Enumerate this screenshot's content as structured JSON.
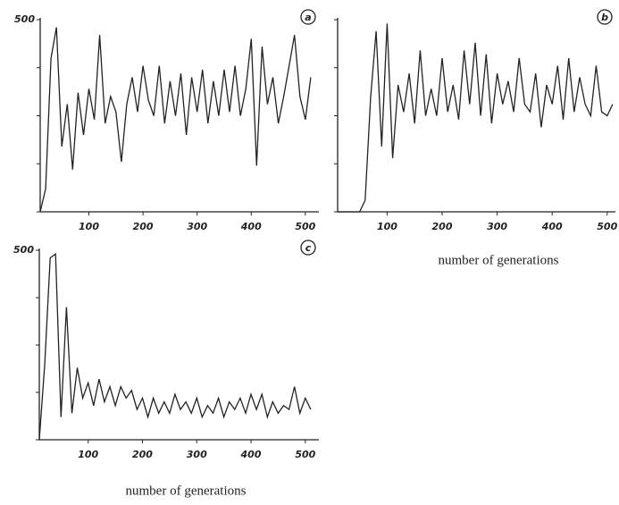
{
  "chart_data": [
    {
      "type": "line",
      "panel_label": "a",
      "x": [
        10,
        20,
        30,
        40,
        50,
        60,
        70,
        80,
        90,
        100,
        110,
        120,
        130,
        140,
        150,
        160,
        170,
        180,
        190,
        200,
        210,
        220,
        230,
        240,
        250,
        260,
        270,
        280,
        290,
        300,
        310,
        320,
        330,
        340,
        350,
        360,
        370,
        380,
        390,
        400,
        410,
        420,
        430,
        440,
        450,
        460,
        470,
        480,
        490,
        500,
        510
      ],
      "values": [
        0,
        60,
        400,
        480,
        170,
        280,
        110,
        310,
        200,
        320,
        240,
        460,
        230,
        300,
        260,
        130,
        280,
        350,
        260,
        380,
        290,
        250,
        380,
        230,
        340,
        250,
        360,
        200,
        350,
        260,
        370,
        230,
        340,
        250,
        370,
        260,
        380,
        250,
        320,
        450,
        120,
        430,
        280,
        350,
        230,
        300,
        380,
        460,
        300,
        240,
        350
      ],
      "color": "#222222",
      "xlim": [
        10,
        525
      ],
      "ylim": [
        0,
        500
      ],
      "xticks": [
        100,
        200,
        300,
        400,
        500
      ],
      "yticks": [
        500
      ],
      "y_minor_ticks": [
        0,
        125,
        250,
        375
      ]
    },
    {
      "type": "line",
      "panel_label": "b",
      "xlabel": "number of  generations",
      "x": [
        10,
        20,
        30,
        40,
        50,
        60,
        70,
        80,
        90,
        100,
        110,
        120,
        130,
        140,
        150,
        160,
        170,
        180,
        190,
        200,
        210,
        220,
        230,
        240,
        250,
        260,
        270,
        280,
        290,
        300,
        310,
        320,
        330,
        340,
        350,
        360,
        370,
        380,
        390,
        400,
        410,
        420,
        430,
        440,
        450,
        460,
        470,
        480,
        490,
        500,
        510
      ],
      "values": [
        0,
        0,
        0,
        0,
        0,
        30,
        300,
        470,
        170,
        490,
        140,
        330,
        260,
        360,
        230,
        420,
        250,
        320,
        250,
        400,
        260,
        330,
        240,
        420,
        280,
        440,
        250,
        410,
        230,
        360,
        280,
        340,
        260,
        400,
        280,
        260,
        360,
        220,
        330,
        280,
        380,
        240,
        400,
        260,
        350,
        280,
        250,
        380,
        260,
        250,
        280
      ],
      "color": "#222222",
      "xlim": [
        10,
        515
      ],
      "ylim": [
        0,
        500
      ],
      "xticks": [
        100,
        200,
        300,
        400,
        500
      ],
      "y_minor_ticks": [
        0,
        125,
        250,
        375,
        500
      ]
    },
    {
      "type": "line",
      "panel_label": "c",
      "xlabel": "number  of  generations",
      "x": [
        10,
        20,
        30,
        40,
        50,
        60,
        70,
        80,
        90,
        100,
        110,
        120,
        130,
        140,
        150,
        160,
        170,
        180,
        190,
        200,
        210,
        220,
        230,
        240,
        250,
        260,
        270,
        280,
        290,
        300,
        310,
        320,
        330,
        340,
        350,
        360,
        370,
        380,
        390,
        400,
        410,
        420,
        430,
        440,
        450,
        460,
        470,
        480,
        490,
        500,
        510
      ],
      "values": [
        0,
        200,
        480,
        490,
        60,
        350,
        70,
        190,
        110,
        150,
        90,
        160,
        100,
        140,
        90,
        140,
        110,
        130,
        80,
        110,
        60,
        110,
        70,
        100,
        70,
        120,
        80,
        100,
        70,
        110,
        60,
        90,
        70,
        110,
        60,
        100,
        80,
        110,
        70,
        120,
        80,
        120,
        60,
        100,
        70,
        90,
        80,
        140,
        70,
        110,
        80
      ],
      "color": "#222222",
      "xlim": [
        10,
        525
      ],
      "ylim": [
        0,
        500
      ],
      "xticks": [
        100,
        200,
        300,
        400,
        500
      ],
      "yticks": [
        500
      ],
      "y_minor_ticks": [
        0,
        125,
        250,
        375
      ]
    }
  ]
}
